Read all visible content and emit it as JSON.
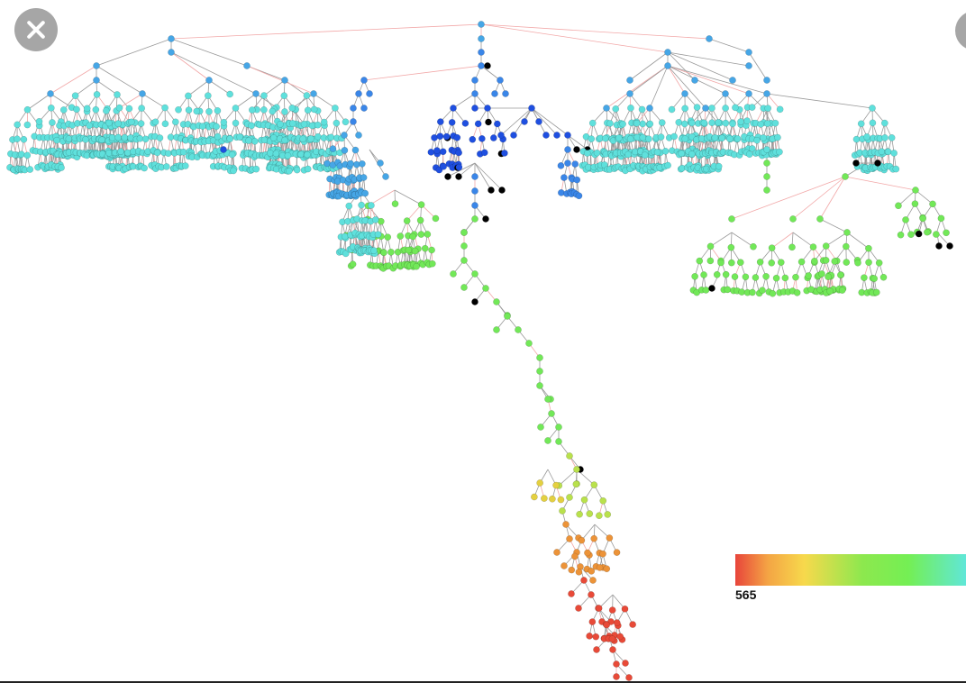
{
  "legend": {
    "min_label": "565",
    "colors": [
      "#e8453b",
      "#f4a444",
      "#f7d94c",
      "#8de84e",
      "#74ef54",
      "#60e7d8"
    ]
  },
  "icons": {
    "close": "close-icon",
    "side": "circle-button"
  },
  "palette": {
    "deep_blue": "#1f4fe0",
    "blue": "#3a86e8",
    "sky": "#46a6e6",
    "cyan": "#5fe0dc",
    "green": "#72e858",
    "yellow_green": "#b9e14c",
    "yellow": "#e4d040",
    "orange": "#ec9338",
    "red": "#e84a38",
    "black": "#000000",
    "edge_gray": "#9a9a9a",
    "edge_red": "#f2a8a8"
  }
}
